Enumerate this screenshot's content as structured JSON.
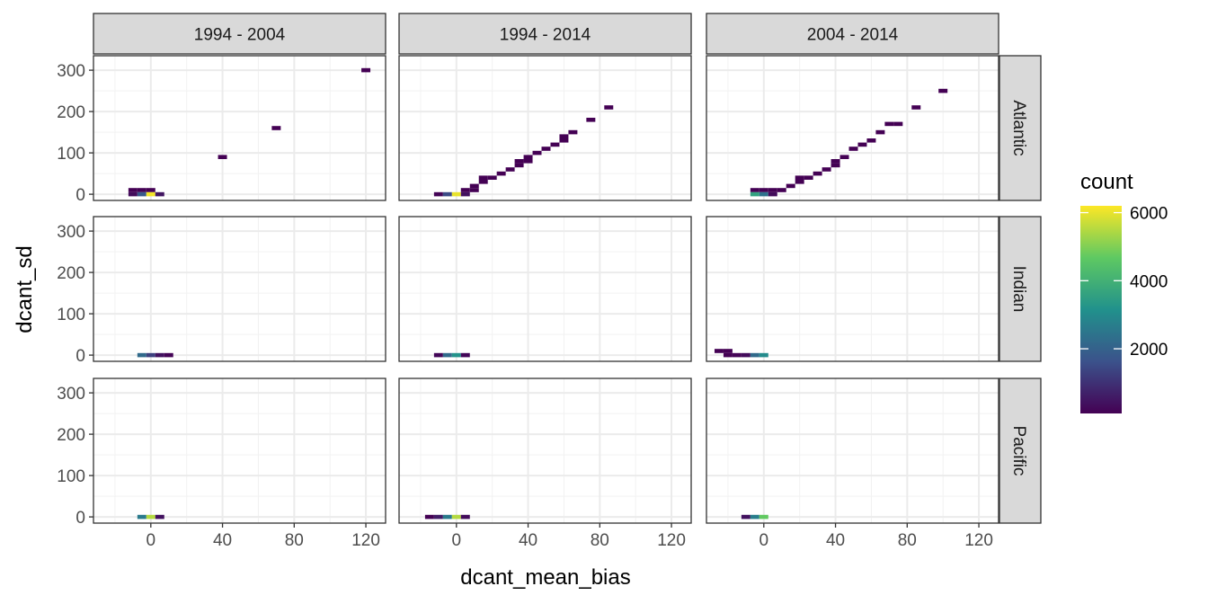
{
  "chart_data": {
    "type": "heatmap",
    "subtype": "2d-binned-count",
    "xlabel": "dcant_mean_bias",
    "ylabel": "dcant_sd",
    "xlim": [
      -32,
      131
    ],
    "ylim": [
      -15,
      335
    ],
    "x_ticks": [
      0,
      40,
      80,
      120
    ],
    "y_ticks": [
      0,
      100,
      200,
      300
    ],
    "bin_width": [
      5,
      10
    ],
    "grid": true,
    "columns": [
      "1994 - 2004",
      "1994 - 2014",
      "2004 - 2014"
    ],
    "rows": [
      "Atlantic",
      "Indian",
      "Pacific"
    ],
    "legend": {
      "title": "count",
      "position": "right",
      "ticks": [
        2000,
        4000,
        6000
      ],
      "range": [
        100,
        6200
      ],
      "colors": [
        "#440154",
        "#3b528b",
        "#21918c",
        "#5ec962",
        "#fde725"
      ]
    },
    "panels": [
      {
        "row": "Atlantic",
        "col": "1994 - 2004",
        "bins": [
          [
            -10,
            10,
            100
          ],
          [
            -5,
            10,
            100
          ],
          [
            0,
            10,
            100
          ],
          [
            -10,
            0,
            300
          ],
          [
            -5,
            0,
            1800
          ],
          [
            0,
            0,
            6100
          ],
          [
            5,
            0,
            500
          ],
          [
            40,
            90,
            100
          ],
          [
            70,
            160,
            100
          ],
          [
            120,
            300,
            100
          ]
        ]
      },
      {
        "row": "Atlantic",
        "col": "1994 - 2014",
        "bins": [
          [
            -10,
            0,
            150
          ],
          [
            -5,
            0,
            1500
          ],
          [
            0,
            0,
            6000
          ],
          [
            5,
            0,
            400
          ],
          [
            5,
            10,
            100
          ],
          [
            10,
            10,
            100
          ],
          [
            10,
            20,
            100
          ],
          [
            15,
            30,
            100
          ],
          [
            15,
            40,
            100
          ],
          [
            20,
            40,
            100
          ],
          [
            25,
            50,
            100
          ],
          [
            30,
            60,
            100
          ],
          [
            35,
            70,
            100
          ],
          [
            35,
            80,
            100
          ],
          [
            40,
            80,
            100
          ],
          [
            40,
            90,
            100
          ],
          [
            45,
            100,
            100
          ],
          [
            50,
            110,
            100
          ],
          [
            55,
            120,
            100
          ],
          [
            60,
            130,
            100
          ],
          [
            60,
            140,
            100
          ],
          [
            65,
            150,
            100
          ],
          [
            75,
            180,
            100
          ],
          [
            85,
            210,
            100
          ]
        ]
      },
      {
        "row": "Atlantic",
        "col": "2004 - 2014",
        "bins": [
          [
            -5,
            10,
            100
          ],
          [
            0,
            10,
            100
          ],
          [
            -5,
            0,
            3600
          ],
          [
            0,
            0,
            2400
          ],
          [
            5,
            0,
            300
          ],
          [
            5,
            10,
            100
          ],
          [
            10,
            10,
            100
          ],
          [
            15,
            20,
            100
          ],
          [
            20,
            30,
            100
          ],
          [
            20,
            40,
            100
          ],
          [
            25,
            40,
            100
          ],
          [
            30,
            50,
            100
          ],
          [
            35,
            60,
            100
          ],
          [
            40,
            70,
            100
          ],
          [
            40,
            80,
            100
          ],
          [
            45,
            90,
            100
          ],
          [
            50,
            110,
            100
          ],
          [
            55,
            120,
            100
          ],
          [
            60,
            130,
            100
          ],
          [
            65,
            150,
            100
          ],
          [
            70,
            170,
            100
          ],
          [
            75,
            170,
            100
          ],
          [
            85,
            210,
            100
          ],
          [
            100,
            250,
            100
          ]
        ]
      },
      {
        "row": "Indian",
        "col": "1994 - 2004",
        "bins": [
          [
            -5,
            0,
            2200
          ],
          [
            0,
            0,
            1300
          ],
          [
            5,
            0,
            400
          ],
          [
            10,
            0,
            150
          ]
        ]
      },
      {
        "row": "Indian",
        "col": "1994 - 2014",
        "bins": [
          [
            -10,
            0,
            200
          ],
          [
            -5,
            0,
            2200
          ],
          [
            0,
            0,
            3200
          ],
          [
            5,
            0,
            200
          ]
        ]
      },
      {
        "row": "Indian",
        "col": "2004 - 2014",
        "bins": [
          [
            -25,
            10,
            100
          ],
          [
            -20,
            10,
            100
          ],
          [
            -20,
            0,
            100
          ],
          [
            -15,
            0,
            150
          ],
          [
            -10,
            0,
            300
          ],
          [
            -5,
            0,
            2200
          ],
          [
            0,
            0,
            3000
          ]
        ]
      },
      {
        "row": "Pacific",
        "col": "1994 - 2004",
        "bins": [
          [
            -5,
            0,
            2600
          ],
          [
            0,
            0,
            5500
          ],
          [
            5,
            0,
            400
          ]
        ]
      },
      {
        "row": "Pacific",
        "col": "1994 - 2014",
        "bins": [
          [
            -15,
            0,
            100
          ],
          [
            -10,
            0,
            600
          ],
          [
            -5,
            0,
            2600
          ],
          [
            0,
            0,
            5500
          ],
          [
            5,
            0,
            300
          ]
        ]
      },
      {
        "row": "Pacific",
        "col": "2004 - 2014",
        "bins": [
          [
            -10,
            0,
            400
          ],
          [
            -5,
            0,
            2700
          ],
          [
            0,
            0,
            4700
          ]
        ]
      }
    ]
  }
}
